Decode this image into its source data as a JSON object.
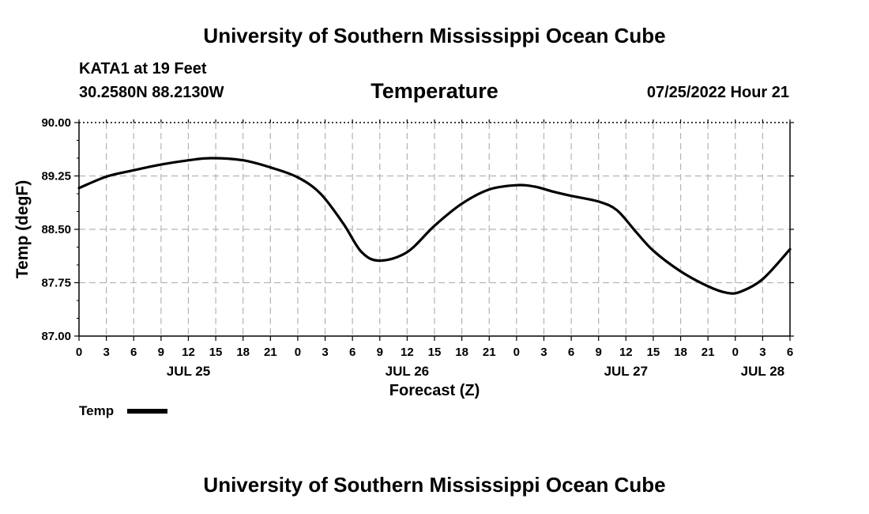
{
  "header": {
    "title": "University of Southern Mississippi Ocean Cube",
    "station": "KATA1 at 19 Feet",
    "coordinates": "30.2580N  88.2130W",
    "chart_title": "Temperature",
    "datetime": "07/25/2022 Hour 21"
  },
  "footer": {
    "title": "University of Southern Mississippi Ocean Cube"
  },
  "legend": {
    "label": "Temp",
    "color": "#000000"
  },
  "chart_data": {
    "type": "line",
    "title": "Temperature",
    "xlabel": "Forecast (Z)",
    "ylabel": "Temp (degF)",
    "ylim": [
      87.0,
      90.0
    ],
    "xlim_hours": [
      0,
      78
    ],
    "grid": true,
    "y_ticks": [
      "87.00",
      "87.75",
      "88.50",
      "89.25",
      "90.00"
    ],
    "y_tick_values": [
      87.0,
      87.75,
      88.5,
      89.25,
      90.0
    ],
    "x_tick_labels": [
      "0",
      "3",
      "6",
      "9",
      "12",
      "15",
      "18",
      "21",
      "0",
      "3",
      "6",
      "9",
      "12",
      "15",
      "18",
      "21",
      "0",
      "3",
      "6",
      "9",
      "12",
      "15",
      "18",
      "21",
      "0",
      "3",
      "6"
    ],
    "date_labels": [
      {
        "label": "JUL 25",
        "hour": 12
      },
      {
        "label": "JUL 26",
        "hour": 36
      },
      {
        "label": "JUL 27",
        "hour": 60
      },
      {
        "label": "JUL 28",
        "hour": 75
      }
    ],
    "series": [
      {
        "name": "Temp",
        "x_hours": [
          0,
          3,
          6,
          9,
          12,
          14.5,
          18,
          21,
          24,
          26.5,
          29,
          31,
          33,
          36,
          39,
          42,
          45,
          48,
          50,
          52,
          54,
          57,
          59,
          61,
          63,
          66,
          69,
          71,
          72.5,
          75,
          78
        ],
        "values": [
          89.08,
          89.24,
          89.33,
          89.41,
          89.47,
          89.5,
          89.47,
          89.37,
          89.23,
          89.0,
          88.58,
          88.18,
          88.06,
          88.18,
          88.55,
          88.86,
          89.06,
          89.12,
          89.1,
          89.03,
          88.97,
          88.89,
          88.77,
          88.48,
          88.2,
          87.91,
          87.7,
          87.61,
          87.62,
          87.8,
          88.22
        ]
      }
    ]
  }
}
